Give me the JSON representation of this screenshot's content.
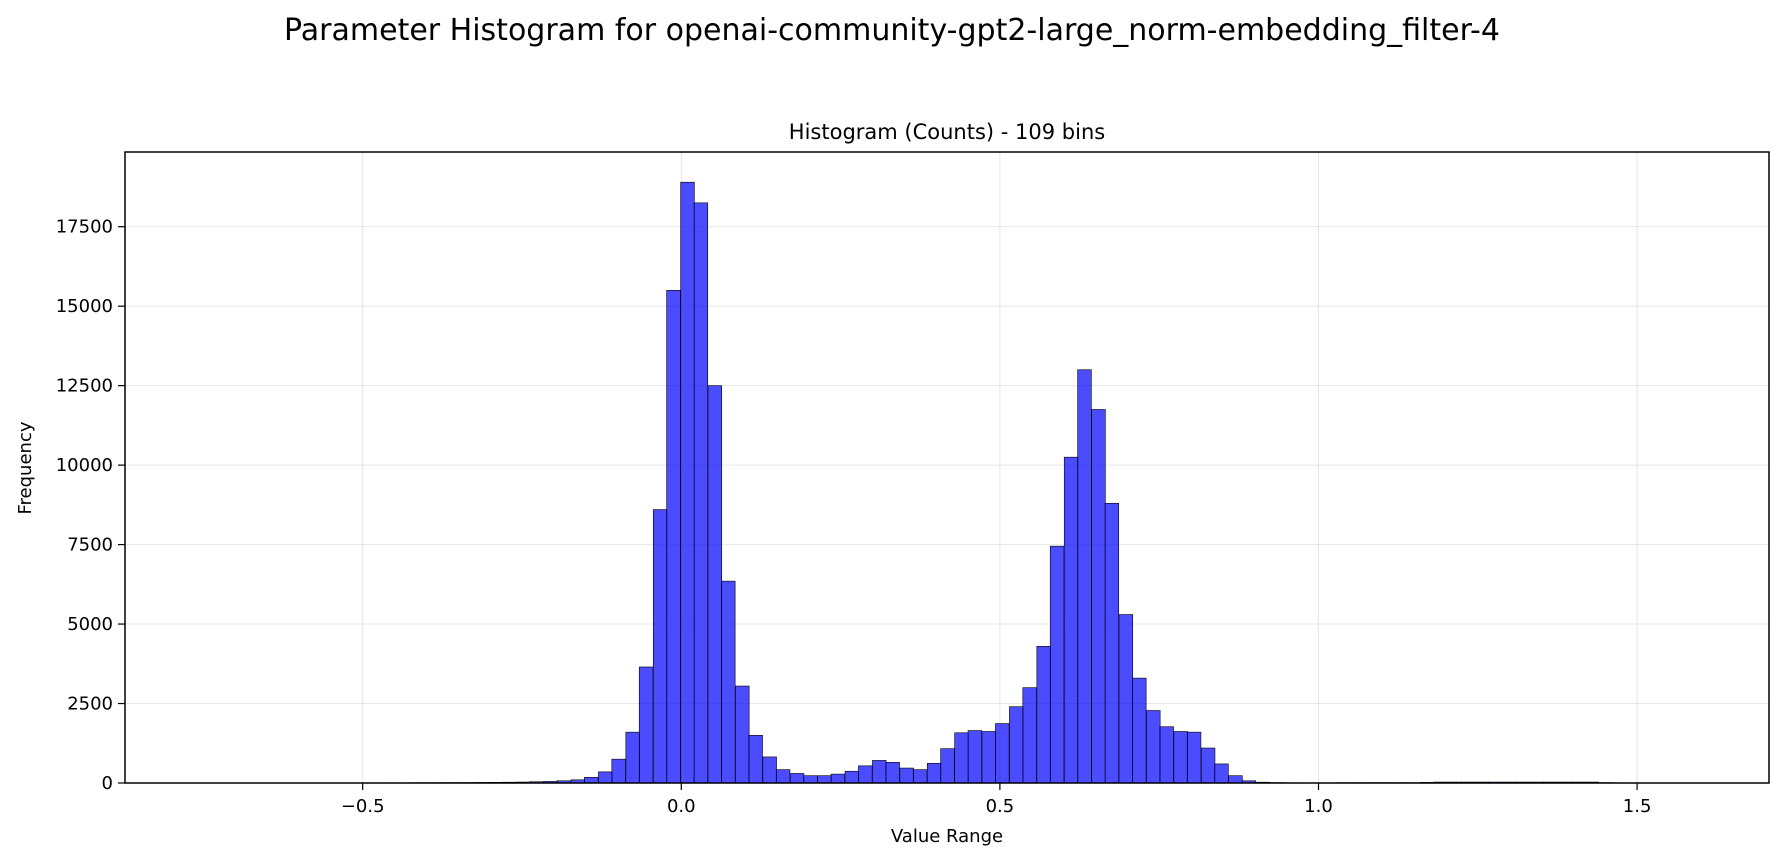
{
  "chart_data": {
    "type": "bar",
    "title": "Parameter Histogram for openai-community-gpt2-large_norm-embedding_filter-4",
    "subtitle": "Histogram (Counts) - 109 bins",
    "xlabel": "Value Range",
    "ylabel": "Frequency",
    "xlim": [
      -0.873,
      1.707
    ],
    "ylim": [
      0,
      19850
    ],
    "grid": true,
    "bar_color": "#0000ff",
    "bin_width": 0.0215,
    "x_ticks": [
      -0.5,
      0.0,
      0.5,
      1.0,
      1.5
    ],
    "x_tick_labels": [
      "−0.5",
      "0.0",
      "0.5",
      "1.0",
      "1.5"
    ],
    "y_ticks": [
      0,
      2500,
      5000,
      7500,
      10000,
      12500,
      15000,
      17500
    ],
    "y_tick_labels": [
      "0",
      "2500",
      "5000",
      "7500",
      "10000",
      "12500",
      "15000",
      "17500"
    ],
    "bins": [
      {
        "x": -0.754,
        "y": 2
      },
      {
        "x": -0.732,
        "y": 2
      },
      {
        "x": -0.711,
        "y": 3
      },
      {
        "x": -0.689,
        "y": 3
      },
      {
        "x": -0.668,
        "y": 3
      },
      {
        "x": -0.646,
        "y": 4
      },
      {
        "x": -0.625,
        "y": 4
      },
      {
        "x": -0.603,
        "y": 4
      },
      {
        "x": -0.582,
        "y": 5
      },
      {
        "x": -0.56,
        "y": 5
      },
      {
        "x": -0.539,
        "y": 6
      },
      {
        "x": -0.517,
        "y": 6
      },
      {
        "x": -0.496,
        "y": 7
      },
      {
        "x": -0.474,
        "y": 8
      },
      {
        "x": -0.453,
        "y": 8
      },
      {
        "x": -0.431,
        "y": 9
      },
      {
        "x": -0.41,
        "y": 10
      },
      {
        "x": -0.388,
        "y": 12
      },
      {
        "x": -0.367,
        "y": 13
      },
      {
        "x": -0.345,
        "y": 15
      },
      {
        "x": -0.324,
        "y": 18
      },
      {
        "x": -0.302,
        "y": 21
      },
      {
        "x": -0.281,
        "y": 25
      },
      {
        "x": -0.259,
        "y": 30
      },
      {
        "x": -0.238,
        "y": 40
      },
      {
        "x": -0.216,
        "y": 50
      },
      {
        "x": -0.195,
        "y": 70
      },
      {
        "x": -0.173,
        "y": 100
      },
      {
        "x": -0.152,
        "y": 180
      },
      {
        "x": -0.13,
        "y": 350
      },
      {
        "x": -0.109,
        "y": 750
      },
      {
        "x": -0.087,
        "y": 1600
      },
      {
        "x": -0.066,
        "y": 3650
      },
      {
        "x": -0.044,
        "y": 8600
      },
      {
        "x": -0.023,
        "y": 15500
      },
      {
        "x": -0.001,
        "y": 18900
      },
      {
        "x": 0.02,
        "y": 18250
      },
      {
        "x": 0.042,
        "y": 12500
      },
      {
        "x": 0.063,
        "y": 6350
      },
      {
        "x": 0.085,
        "y": 3050
      },
      {
        "x": 0.106,
        "y": 1500
      },
      {
        "x": 0.128,
        "y": 820
      },
      {
        "x": 0.149,
        "y": 420
      },
      {
        "x": 0.171,
        "y": 300
      },
      {
        "x": 0.192,
        "y": 230
      },
      {
        "x": 0.214,
        "y": 230
      },
      {
        "x": 0.235,
        "y": 280
      },
      {
        "x": 0.257,
        "y": 370
      },
      {
        "x": 0.278,
        "y": 540
      },
      {
        "x": 0.3,
        "y": 710
      },
      {
        "x": 0.321,
        "y": 650
      },
      {
        "x": 0.343,
        "y": 470
      },
      {
        "x": 0.364,
        "y": 420
      },
      {
        "x": 0.386,
        "y": 620
      },
      {
        "x": 0.407,
        "y": 1080
      },
      {
        "x": 0.429,
        "y": 1580
      },
      {
        "x": 0.45,
        "y": 1650
      },
      {
        "x": 0.472,
        "y": 1620
      },
      {
        "x": 0.493,
        "y": 1870
      },
      {
        "x": 0.515,
        "y": 2400
      },
      {
        "x": 0.536,
        "y": 3000
      },
      {
        "x": 0.558,
        "y": 4300
      },
      {
        "x": 0.579,
        "y": 7450
      },
      {
        "x": 0.601,
        "y": 10250
      },
      {
        "x": 0.622,
        "y": 13000
      },
      {
        "x": 0.644,
        "y": 11750
      },
      {
        "x": 0.665,
        "y": 8800
      },
      {
        "x": 0.687,
        "y": 5300
      },
      {
        "x": 0.708,
        "y": 3300
      },
      {
        "x": 0.73,
        "y": 2280
      },
      {
        "x": 0.751,
        "y": 1770
      },
      {
        "x": 0.773,
        "y": 1620
      },
      {
        "x": 0.794,
        "y": 1600
      },
      {
        "x": 0.816,
        "y": 1100
      },
      {
        "x": 0.837,
        "y": 600
      },
      {
        "x": 0.859,
        "y": 230
      },
      {
        "x": 0.88,
        "y": 70
      },
      {
        "x": 0.902,
        "y": 25
      },
      {
        "x": 0.923,
        "y": 12
      },
      {
        "x": 0.945,
        "y": 8
      },
      {
        "x": 0.966,
        "y": 6
      },
      {
        "x": 0.988,
        "y": 6
      },
      {
        "x": 1.009,
        "y": 8
      },
      {
        "x": 1.031,
        "y": 10
      },
      {
        "x": 1.052,
        "y": 12
      },
      {
        "x": 1.074,
        "y": 12
      },
      {
        "x": 1.095,
        "y": 12
      },
      {
        "x": 1.117,
        "y": 12
      },
      {
        "x": 1.138,
        "y": 10
      },
      {
        "x": 1.16,
        "y": 20
      },
      {
        "x": 1.181,
        "y": 30
      },
      {
        "x": 1.203,
        "y": 30
      },
      {
        "x": 1.224,
        "y": 30
      },
      {
        "x": 1.246,
        "y": 30
      },
      {
        "x": 1.267,
        "y": 30
      },
      {
        "x": 1.289,
        "y": 30
      },
      {
        "x": 1.31,
        "y": 30
      },
      {
        "x": 1.332,
        "y": 30
      },
      {
        "x": 1.353,
        "y": 30
      },
      {
        "x": 1.375,
        "y": 30
      },
      {
        "x": 1.396,
        "y": 30
      },
      {
        "x": 1.418,
        "y": 30
      },
      {
        "x": 1.439,
        "y": 12
      },
      {
        "x": 1.461,
        "y": 8
      },
      {
        "x": 1.482,
        "y": 6
      },
      {
        "x": 1.504,
        "y": 5
      },
      {
        "x": 1.525,
        "y": 4
      },
      {
        "x": 1.547,
        "y": 3
      },
      {
        "x": 1.568,
        "y": 2
      }
    ]
  }
}
